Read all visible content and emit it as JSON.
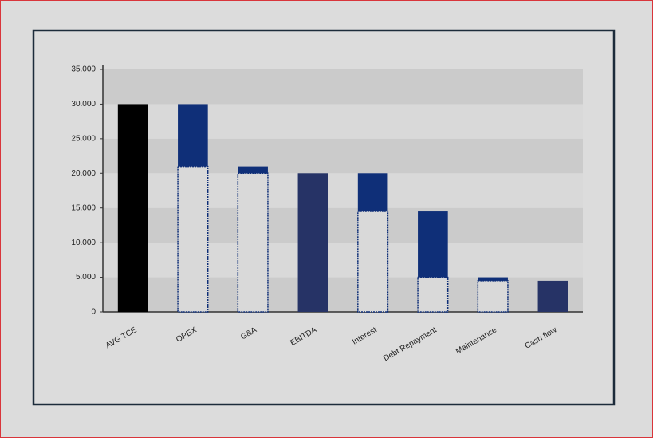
{
  "chart_data": {
    "type": "waterfall",
    "categories": [
      "AVG TCE",
      "OPEX",
      "G&A",
      "EBITDA",
      "Interest",
      "Debt Repayment",
      "Maintenance",
      "Cash flow"
    ],
    "values": [
      30000,
      -9000,
      -1000,
      20000,
      -5500,
      -9500,
      -500,
      4500
    ],
    "measures": [
      "absolute",
      "relative",
      "relative",
      "total",
      "relative",
      "relative",
      "relative",
      "total"
    ],
    "colors": [
      "#000000",
      "#0f2f78",
      "#0f2f78",
      "#263366",
      "#0f2f78",
      "#0f2f78",
      "#0f2f78",
      "#263366"
    ],
    "ylim": [
      0,
      35000
    ],
    "yticks": [
      0,
      {
        "value": 5000,
        "label": "5.000"
      },
      {
        "value": 10000,
        "label": "10.000"
      },
      {
        "value": 15000,
        "label": "15.000"
      },
      {
        "value": 20000,
        "label": "20.000"
      },
      {
        "value": 25000,
        "label": "25.000"
      },
      {
        "value": 30000,
        "label": "30.000"
      },
      {
        "value": 35000,
        "label": "35.000"
      }
    ],
    "grid": true
  }
}
